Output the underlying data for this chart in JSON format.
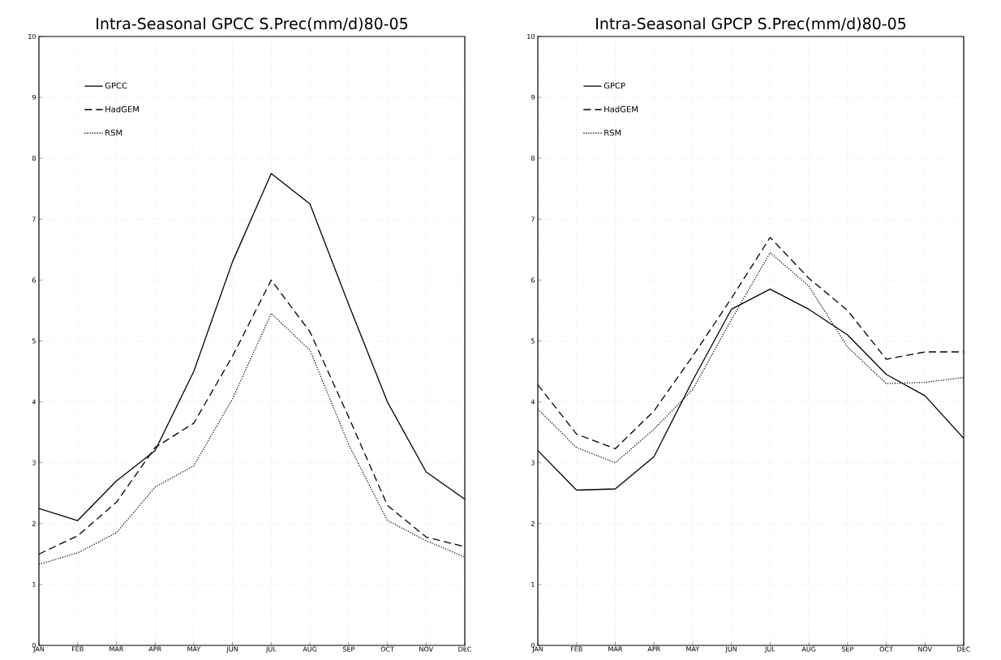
{
  "chart_data": [
    {
      "type": "line",
      "title": "Intra-Seasonal GPCC S.Prec(mm/d)80-05",
      "categories": [
        "JAN",
        "FEB",
        "MAR",
        "APR",
        "MAY",
        "JUN",
        "JUL",
        "AUG",
        "SEP",
        "OCT",
        "NOV",
        "DEC"
      ],
      "ylim": [
        0,
        10
      ],
      "yticks": [
        0,
        1,
        2,
        3,
        4,
        5,
        6,
        7,
        8,
        9,
        10
      ],
      "grid": true,
      "legend": "top left",
      "series": [
        {
          "name": "GPCC",
          "color": "#000000",
          "line_style": "solid",
          "values": [
            2.25,
            2.05,
            2.7,
            3.2,
            4.5,
            6.3,
            7.75,
            7.25,
            5.6,
            4.0,
            2.85,
            2.4
          ]
        },
        {
          "name": "HadGEM",
          "color": "#000000",
          "line_style": "dashed",
          "values": [
            1.5,
            1.8,
            2.35,
            3.25,
            3.65,
            4.75,
            6.0,
            5.15,
            3.75,
            2.3,
            1.78,
            1.62
          ]
        },
        {
          "name": "RSM",
          "color": "#000000",
          "line_style": "dotted",
          "values": [
            1.33,
            1.52,
            1.85,
            2.6,
            2.95,
            4.05,
            5.45,
            4.85,
            3.3,
            2.05,
            1.72,
            1.45
          ]
        }
      ]
    },
    {
      "type": "line",
      "title": "Intra-Seasonal GPCP S.Prec(mm/d)80-05",
      "categories": [
        "JAN",
        "FEB",
        "MAR",
        "APR",
        "MAY",
        "JUN",
        "JUL",
        "AUG",
        "SEP",
        "OCT",
        "NOV",
        "DEC"
      ],
      "ylim": [
        0,
        10
      ],
      "yticks": [
        0,
        1,
        2,
        3,
        4,
        5,
        6,
        7,
        8,
        9,
        10
      ],
      "grid": true,
      "legend": "top left",
      "series": [
        {
          "name": "GPCP",
          "color": "#000000",
          "line_style": "solid",
          "values": [
            3.2,
            2.55,
            2.57,
            3.1,
            4.35,
            5.52,
            5.85,
            5.52,
            5.1,
            4.45,
            4.1,
            3.4
          ]
        },
        {
          "name": "HadGEM",
          "color": "#000000",
          "line_style": "dashed",
          "values": [
            4.28,
            3.47,
            3.23,
            3.85,
            4.75,
            5.7,
            6.7,
            6.03,
            5.5,
            4.7,
            4.82,
            4.82
          ]
        },
        {
          "name": "RSM",
          "color": "#000000",
          "line_style": "dotted",
          "values": [
            3.88,
            3.25,
            3.0,
            3.55,
            4.2,
            5.35,
            6.45,
            5.9,
            4.9,
            4.3,
            4.32,
            4.4
          ]
        }
      ]
    }
  ]
}
